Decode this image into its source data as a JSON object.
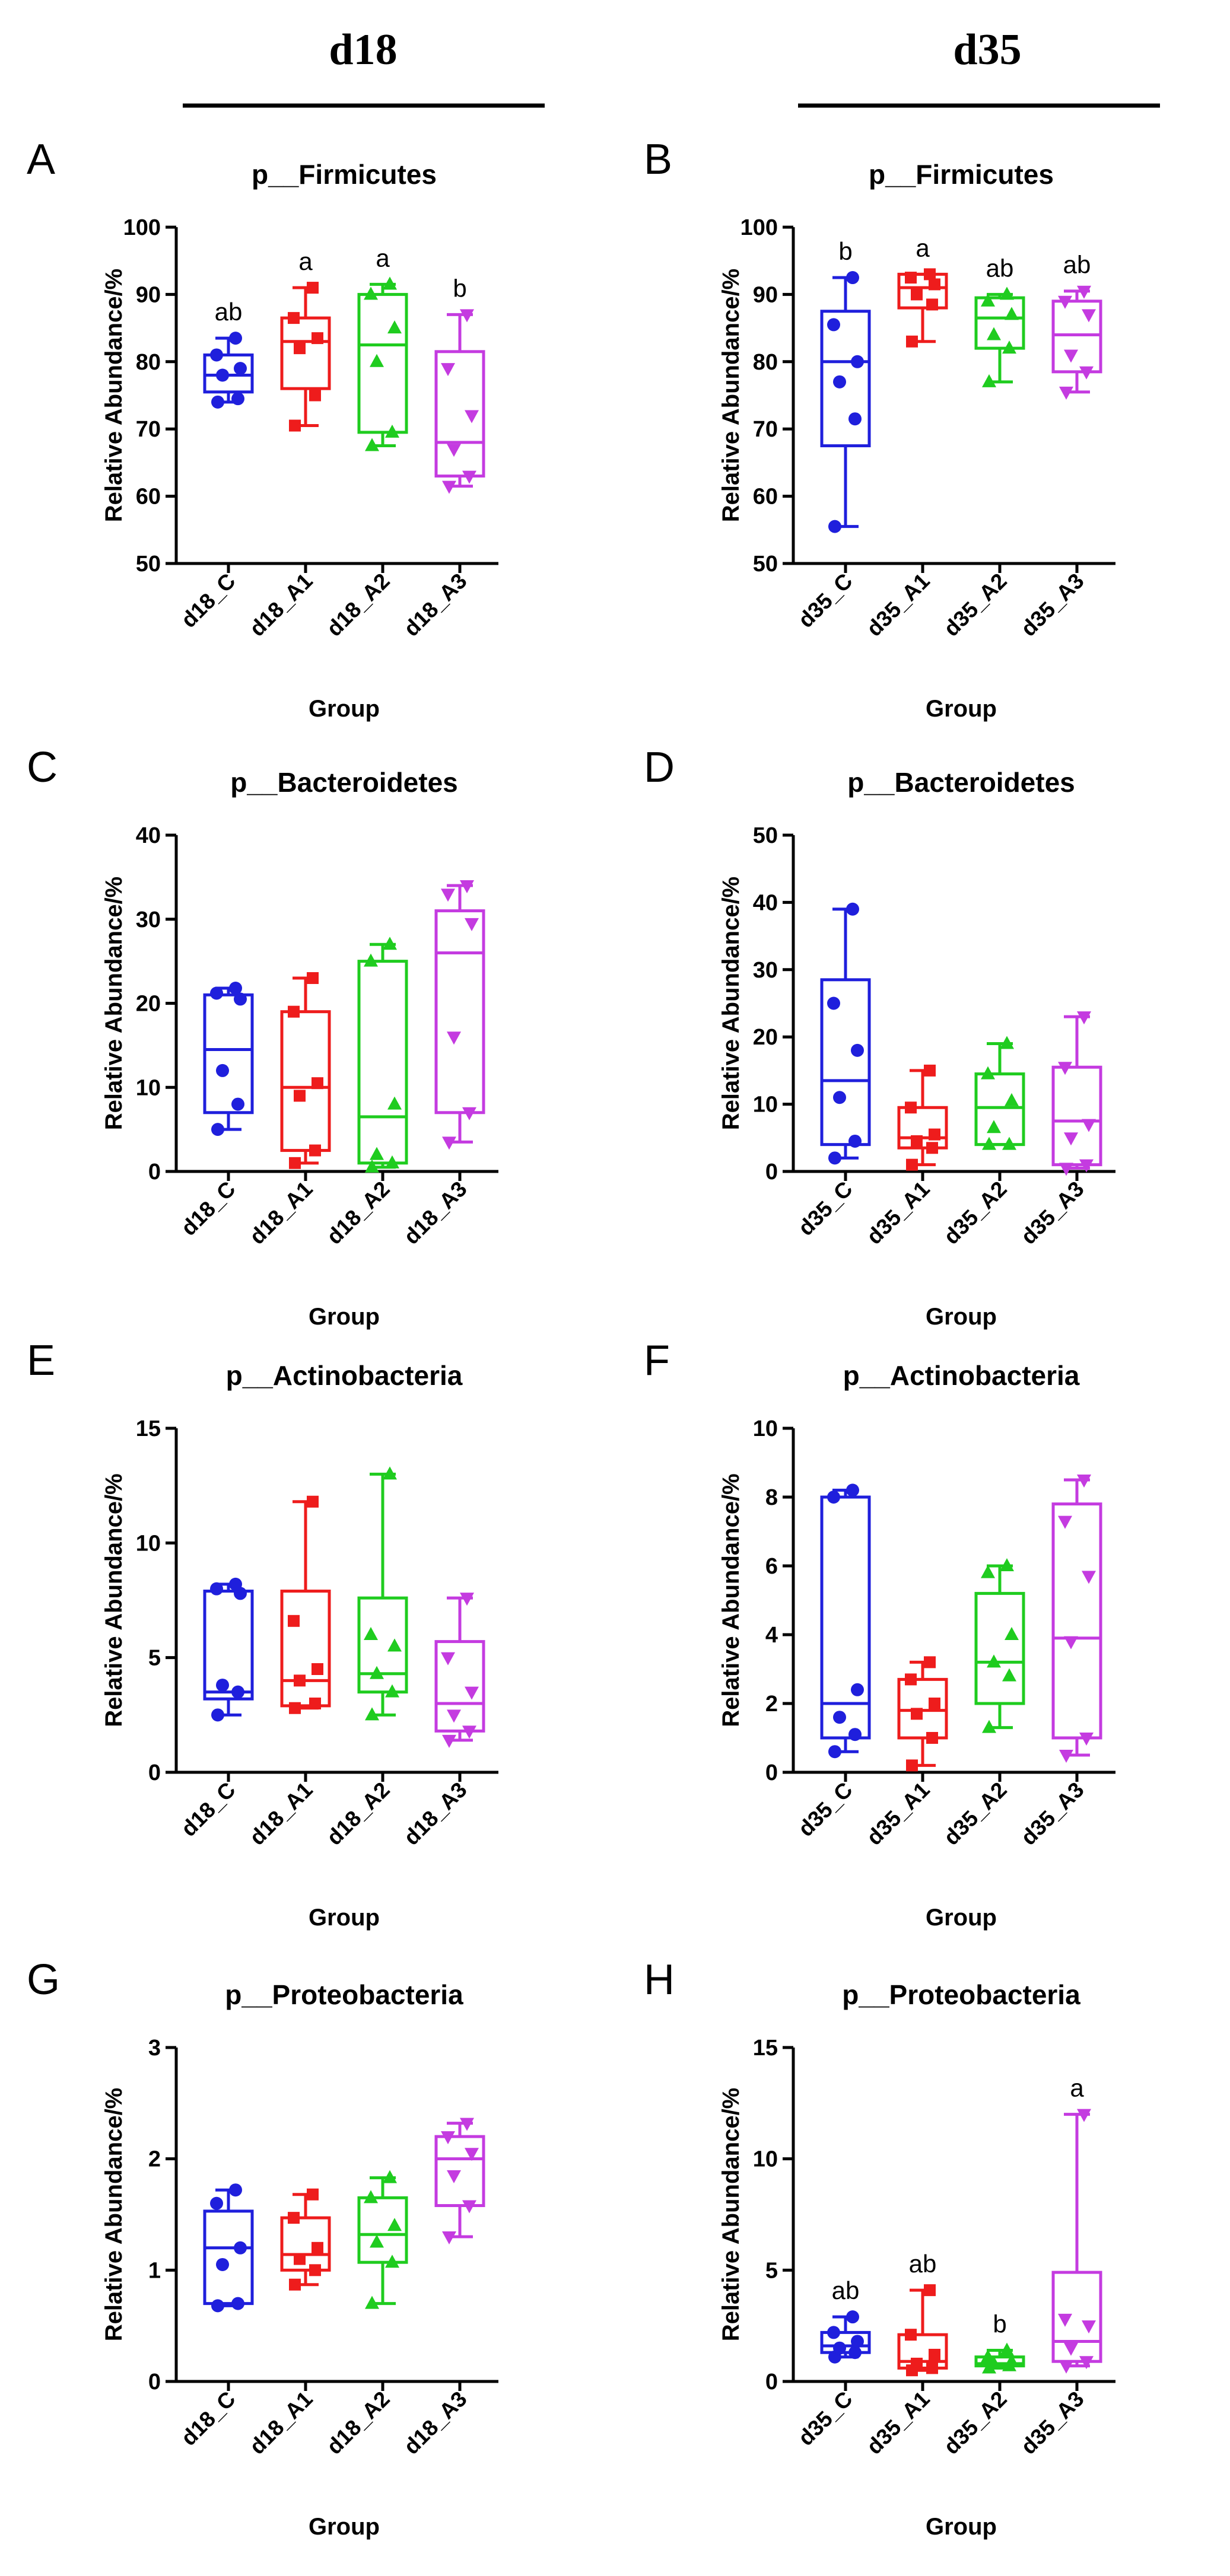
{
  "column_headers": [
    "d18",
    "d35"
  ],
  "colors": {
    "C": "#1f1fdc",
    "A1": "#ee1c1c",
    "A2": "#1fcc1f",
    "A3": "#c43be0"
  },
  "chart_data": [
    {
      "panel": "A",
      "type": "box",
      "title": "p__Firmicutes",
      "xlabel": "Group",
      "ylabel": "Relative Abundance/%",
      "ylim": [
        50,
        100
      ],
      "yticks": [
        50,
        60,
        70,
        80,
        90,
        100
      ],
      "categories": [
        "d18_C",
        "d18_A1",
        "d18_A2",
        "d18_A3"
      ],
      "markers": [
        "circle",
        "square",
        "triangle-up",
        "triangle-down"
      ],
      "groups": [
        {
          "min": 74,
          "q1": 75.5,
          "median": 78,
          "q3": 81,
          "max": 83.5,
          "points": [
            74,
            74.5,
            78,
            79,
            81,
            83.5
          ],
          "sig": "ab"
        },
        {
          "min": 70.5,
          "q1": 76,
          "median": 83,
          "q3": 86.5,
          "max": 91,
          "points": [
            70.5,
            75,
            82,
            83.5,
            86.5,
            91
          ],
          "sig": "a"
        },
        {
          "min": 67.5,
          "q1": 69.5,
          "median": 82.5,
          "q3": 90,
          "max": 91.5,
          "points": [
            67.5,
            69.5,
            80,
            85,
            90,
            91.5
          ],
          "sig": "a"
        },
        {
          "min": 61.5,
          "q1": 63,
          "median": 68,
          "q3": 81.5,
          "max": 87,
          "points": [
            61.5,
            63,
            67,
            72,
            79,
            87
          ],
          "sig": "b"
        }
      ]
    },
    {
      "panel": "B",
      "type": "box",
      "title": "p__Firmicutes",
      "xlabel": "Group",
      "ylabel": "Relative Abundance/%",
      "ylim": [
        50,
        100
      ],
      "yticks": [
        50,
        60,
        70,
        80,
        90,
        100
      ],
      "categories": [
        "d35_C",
        "d35_A1",
        "d35_A2",
        "d35_A3"
      ],
      "markers": [
        "circle",
        "square",
        "triangle-up",
        "triangle-down"
      ],
      "groups": [
        {
          "min": 55.5,
          "q1": 67.5,
          "median": 80,
          "q3": 87.5,
          "max": 92.5,
          "points": [
            55.5,
            71.5,
            77,
            80,
            85.5,
            92.5
          ],
          "sig": "b"
        },
        {
          "min": 83,
          "q1": 88,
          "median": 91,
          "q3": 93,
          "max": 93,
          "points": [
            83,
            88.5,
            90,
            91.5,
            92.5,
            93
          ],
          "sig": "a"
        },
        {
          "min": 77,
          "q1": 82,
          "median": 86.5,
          "q3": 89.5,
          "max": 90,
          "points": [
            77,
            82,
            84,
            87,
            89,
            90
          ],
          "sig": "ab"
        },
        {
          "min": 75.5,
          "q1": 78.5,
          "median": 84,
          "q3": 89,
          "max": 90.5,
          "points": [
            75.5,
            78.5,
            81,
            87,
            89,
            90.5
          ],
          "sig": "ab"
        }
      ]
    },
    {
      "panel": "C",
      "type": "box",
      "title": "p__Bacteroidetes",
      "xlabel": "Group",
      "ylabel": "Relative Abundance/%",
      "ylim": [
        0,
        40
      ],
      "yticks": [
        0,
        10,
        20,
        30,
        40
      ],
      "categories": [
        "d18_C",
        "d18_A1",
        "d18_A2",
        "d18_A3"
      ],
      "markers": [
        "circle",
        "square",
        "triangle-up",
        "triangle-down"
      ],
      "groups": [
        {
          "min": 5,
          "q1": 7,
          "median": 14.5,
          "q3": 21,
          "max": 21.8,
          "points": [
            5,
            8,
            12,
            20.5,
            21.2,
            21.8
          ],
          "sig": ""
        },
        {
          "min": 1,
          "q1": 2.5,
          "median": 10,
          "q3": 19,
          "max": 23,
          "points": [
            1,
            2.5,
            9,
            10.5,
            19,
            23
          ],
          "sig": ""
        },
        {
          "min": 0.5,
          "q1": 1,
          "median": 6.5,
          "q3": 25,
          "max": 27,
          "points": [
            0.5,
            1,
            2,
            8,
            25,
            27
          ],
          "sig": ""
        },
        {
          "min": 3.5,
          "q1": 7,
          "median": 26,
          "q3": 31,
          "max": 34,
          "points": [
            3.5,
            7,
            16,
            29.5,
            33,
            34
          ],
          "sig": ""
        }
      ]
    },
    {
      "panel": "D",
      "type": "box",
      "title": "p__Bacteroidetes",
      "xlabel": "Group",
      "ylabel": "Relative Abundance/%",
      "ylim": [
        0,
        50
      ],
      "yticks": [
        0,
        10,
        20,
        30,
        40,
        50
      ],
      "categories": [
        "d35_C",
        "d35_A1",
        "d35_A2",
        "d35_A3"
      ],
      "markers": [
        "circle",
        "square",
        "triangle-up",
        "triangle-down"
      ],
      "groups": [
        {
          "min": 2,
          "q1": 4,
          "median": 13.5,
          "q3": 28.5,
          "max": 39,
          "points": [
            2,
            4.5,
            11,
            18,
            25,
            39
          ],
          "sig": ""
        },
        {
          "min": 1,
          "q1": 3.5,
          "median": 5,
          "q3": 9.5,
          "max": 15,
          "points": [
            1,
            3.5,
            4.5,
            5.5,
            9.5,
            15
          ],
          "sig": ""
        },
        {
          "min": 4,
          "q1": 4,
          "median": 9.5,
          "q3": 14.5,
          "max": 19,
          "points": [
            4,
            4,
            6.5,
            10.5,
            14.5,
            19
          ],
          "sig": ""
        },
        {
          "min": 0.5,
          "q1": 1,
          "median": 7.5,
          "q3": 15.5,
          "max": 23,
          "points": [
            0.5,
            1,
            5,
            7,
            15.5,
            23
          ],
          "sig": ""
        }
      ]
    },
    {
      "panel": "E",
      "type": "box",
      "title": "p__Actinobacteria",
      "xlabel": "Group",
      "ylabel": "Relative Abundance/%",
      "ylim": [
        0,
        15
      ],
      "yticks": [
        0,
        5,
        10,
        15
      ],
      "categories": [
        "d18_C",
        "d18_A1",
        "d18_A2",
        "d18_A3"
      ],
      "markers": [
        "circle",
        "square",
        "triangle-up",
        "triangle-down"
      ],
      "groups": [
        {
          "min": 2.5,
          "q1": 3.2,
          "median": 3.5,
          "q3": 7.9,
          "max": 8.2,
          "points": [
            2.5,
            3.5,
            3.8,
            7.8,
            8,
            8.2
          ],
          "sig": ""
        },
        {
          "min": 2.8,
          "q1": 2.9,
          "median": 4,
          "q3": 7.9,
          "max": 11.8,
          "points": [
            2.8,
            3,
            4,
            4.5,
            6.6,
            11.8
          ],
          "sig": ""
        },
        {
          "min": 2.5,
          "q1": 3.5,
          "median": 4.3,
          "q3": 7.6,
          "max": 13,
          "points": [
            2.5,
            3.5,
            4.3,
            5.5,
            6,
            13
          ],
          "sig": ""
        },
        {
          "min": 1.4,
          "q1": 1.8,
          "median": 3,
          "q3": 5.7,
          "max": 7.6,
          "points": [
            1.4,
            1.8,
            2.5,
            3.5,
            5,
            7.6
          ],
          "sig": ""
        }
      ]
    },
    {
      "panel": "F",
      "type": "box",
      "title": "p__Actinobacteria",
      "xlabel": "Group",
      "ylabel": "Relative Abundance/%",
      "ylim": [
        0,
        10
      ],
      "yticks": [
        0,
        2,
        4,
        6,
        8,
        10
      ],
      "categories": [
        "d35_C",
        "d35_A1",
        "d35_A2",
        "d35_A3"
      ],
      "markers": [
        "circle",
        "square",
        "triangle-up",
        "triangle-down"
      ],
      "groups": [
        {
          "min": 0.6,
          "q1": 1,
          "median": 2,
          "q3": 8,
          "max": 8.2,
          "points": [
            0.6,
            1.1,
            1.6,
            2.4,
            8,
            8.2
          ],
          "sig": ""
        },
        {
          "min": 0.2,
          "q1": 1,
          "median": 1.8,
          "q3": 2.7,
          "max": 3.2,
          "points": [
            0.2,
            1,
            1.7,
            2,
            2.7,
            3.2
          ],
          "sig": ""
        },
        {
          "min": 1.3,
          "q1": 2,
          "median": 3.2,
          "q3": 5.2,
          "max": 6,
          "points": [
            1.3,
            2.8,
            3.2,
            4,
            5.8,
            6
          ],
          "sig": ""
        },
        {
          "min": 0.5,
          "q1": 1,
          "median": 3.9,
          "q3": 7.8,
          "max": 8.5,
          "points": [
            0.5,
            1,
            3.8,
            5.7,
            7.3,
            8.5
          ],
          "sig": ""
        }
      ]
    },
    {
      "panel": "G",
      "type": "box",
      "title": "p__Proteobacteria",
      "xlabel": "Group",
      "ylabel": "Relative Abundance/%",
      "ylim": [
        0,
        3
      ],
      "yticks": [
        0,
        1,
        2,
        3
      ],
      "categories": [
        "d18_C",
        "d18_A1",
        "d18_A2",
        "d18_A3"
      ],
      "markers": [
        "circle",
        "square",
        "triangle-up",
        "triangle-down"
      ],
      "groups": [
        {
          "min": 0.68,
          "q1": 0.7,
          "median": 1.2,
          "q3": 1.53,
          "max": 1.72,
          "points": [
            0.68,
            0.7,
            1.05,
            1.2,
            1.6,
            1.72
          ],
          "sig": ""
        },
        {
          "min": 0.87,
          "q1": 1,
          "median": 1.14,
          "q3": 1.47,
          "max": 1.68,
          "points": [
            0.87,
            1,
            1.1,
            1.2,
            1.47,
            1.68
          ],
          "sig": ""
        },
        {
          "min": 0.7,
          "q1": 1.07,
          "median": 1.32,
          "q3": 1.65,
          "max": 1.83,
          "points": [
            0.7,
            1.07,
            1.25,
            1.4,
            1.65,
            1.83
          ],
          "sig": ""
        },
        {
          "min": 1.3,
          "q1": 1.58,
          "median": 2,
          "q3": 2.2,
          "max": 2.32,
          "points": [
            1.3,
            1.58,
            1.85,
            2.05,
            2.2,
            2.32
          ],
          "sig": ""
        }
      ]
    },
    {
      "panel": "H",
      "type": "box",
      "title": "p__Proteobacteria",
      "xlabel": "Group",
      "ylabel": "Relative Abundance/%",
      "ylim": [
        0,
        15
      ],
      "yticks": [
        0,
        5,
        10,
        15
      ],
      "categories": [
        "d35_C",
        "d35_A1",
        "d35_A2",
        "d35_A3"
      ],
      "markers": [
        "circle",
        "square",
        "triangle-up",
        "triangle-down"
      ],
      "groups": [
        {
          "min": 1.1,
          "q1": 1.3,
          "median": 1.6,
          "q3": 2.2,
          "max": 2.9,
          "points": [
            1.1,
            1.3,
            1.5,
            1.8,
            2.2,
            2.9
          ],
          "sig": "ab"
        },
        {
          "min": 0.5,
          "q1": 0.6,
          "median": 0.9,
          "q3": 2.1,
          "max": 4.1,
          "points": [
            0.5,
            0.6,
            0.8,
            1.2,
            2.1,
            4.1
          ],
          "sig": "ab"
        },
        {
          "min": 0.6,
          "q1": 0.7,
          "median": 0.8,
          "q3": 1.1,
          "max": 1.4,
          "points": [
            0.6,
            0.7,
            0.8,
            0.9,
            1.1,
            1.4
          ],
          "sig": "b"
        },
        {
          "min": 0.7,
          "q1": 0.9,
          "median": 1.8,
          "q3": 4.9,
          "max": 12,
          "points": [
            0.7,
            0.9,
            1.5,
            2.5,
            2.8,
            12
          ],
          "sig": "a"
        }
      ]
    }
  ]
}
